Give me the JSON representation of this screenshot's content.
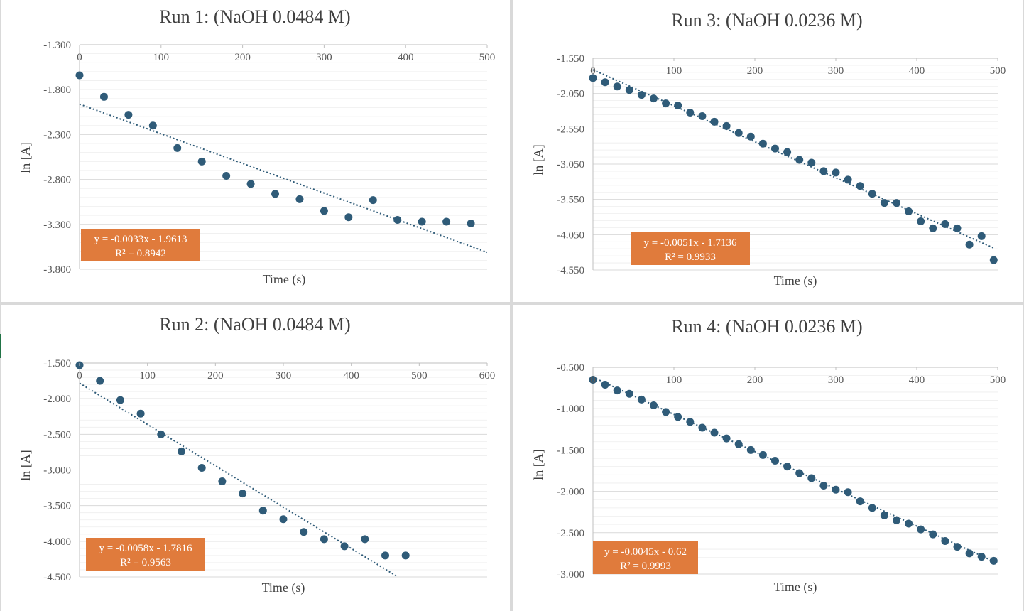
{
  "colors": {
    "point": "#2f5b78",
    "trendline": "#2f5b78",
    "equation_box": "#e07b3c",
    "gridline": "#d9d9d9"
  },
  "chart_data": [
    {
      "type": "scatter",
      "title": "Run 1: (NaOH 0.0484 M)",
      "xlabel": "Time (s)",
      "ylabel": "ln [A]",
      "xlim": [
        0,
        500
      ],
      "ylim": [
        -3.8,
        -1.3
      ],
      "x_ticks": [
        "0",
        "100",
        "200",
        "300",
        "400",
        "500"
      ],
      "y_ticks": [
        "-1.300",
        "-1.800",
        "-2.300",
        "-2.800",
        "-3.300",
        "-3.800"
      ],
      "grid": true,
      "x_axis_position": "top",
      "x": [
        0,
        30,
        60,
        90,
        120,
        150,
        180,
        210,
        240,
        270,
        300,
        330,
        360,
        390,
        420,
        450,
        480
      ],
      "y": [
        -1.64,
        -1.88,
        -2.08,
        -2.2,
        -2.45,
        -2.6,
        -2.76,
        -2.85,
        -2.96,
        -3.02,
        -3.15,
        -3.22,
        -3.03,
        -3.25,
        -3.27,
        -3.27,
        -3.29
      ],
      "trendline": {
        "slope": -0.0033,
        "intercept": -1.9613,
        "x_range": [
          0,
          500
        ]
      },
      "equation": "y = -0.0033x - 1.9613",
      "r_squared": "R² = 0.8942"
    },
    {
      "type": "scatter",
      "title": "Run 3: (NaOH 0.0236 M)",
      "xlabel": "Time (s)",
      "ylabel": "ln [A]",
      "xlim": [
        0,
        500
      ],
      "ylim": [
        -4.55,
        -1.55
      ],
      "x_ticks": [
        "0",
        "100",
        "200",
        "300",
        "400",
        "500"
      ],
      "y_ticks": [
        "-1.550",
        "-2.050",
        "-2.550",
        "-3.050",
        "-3.550",
        "-4.050",
        "-4.550"
      ],
      "grid": true,
      "x_axis_position": "top",
      "x": [
        0,
        15,
        30,
        45,
        60,
        75,
        90,
        105,
        120,
        135,
        150,
        165,
        180,
        195,
        210,
        225,
        240,
        255,
        270,
        285,
        300,
        315,
        330,
        345,
        360,
        375,
        390,
        405,
        420,
        435,
        450,
        465,
        480,
        495
      ],
      "y": [
        -1.83,
        -1.89,
        -1.95,
        -2.0,
        -2.07,
        -2.12,
        -2.19,
        -2.22,
        -2.32,
        -2.37,
        -2.45,
        -2.51,
        -2.61,
        -2.66,
        -2.76,
        -2.83,
        -2.88,
        -2.99,
        -3.03,
        -3.15,
        -3.17,
        -3.27,
        -3.36,
        -3.47,
        -3.6,
        -3.6,
        -3.72,
        -3.86,
        -3.96,
        -3.9,
        -3.96,
        -4.19,
        -4.07,
        -4.41
      ],
      "trendline": {
        "slope": -0.0051,
        "intercept": -1.7136,
        "x_range": [
          0,
          495
        ]
      },
      "equation": "y = -0.0051x - 1.7136",
      "r_squared": "R² = 0.9933"
    },
    {
      "type": "scatter",
      "title": "Run 2: (NaOH 0.0484 M)",
      "xlabel": "Time (s)",
      "ylabel": "ln [A]",
      "xlim": [
        0,
        600
      ],
      "ylim": [
        -4.5,
        -1.5
      ],
      "x_ticks": [
        "0",
        "100",
        "200",
        "300",
        "400",
        "500",
        "600"
      ],
      "y_ticks": [
        "-1.500",
        "-2.000",
        "-2.500",
        "-3.000",
        "-3.500",
        "-4.000",
        "-4.500"
      ],
      "grid": true,
      "x_axis_position": "top",
      "x": [
        0,
        30,
        60,
        90,
        120,
        150,
        180,
        210,
        240,
        270,
        300,
        330,
        360,
        390,
        420,
        450,
        480
      ],
      "y": [
        -1.53,
        -1.75,
        -2.02,
        -2.21,
        -2.5,
        -2.74,
        -2.97,
        -3.16,
        -3.33,
        -3.57,
        -3.69,
        -3.87,
        -3.97,
        -4.07,
        -3.97,
        -4.2,
        -4.2
      ],
      "trendline": {
        "slope": -0.0058,
        "intercept": -1.7816,
        "x_range": [
          0,
          470
        ]
      },
      "equation": "y = -0.0058x - 1.7816",
      "r_squared": "R² = 0.9563"
    },
    {
      "type": "scatter",
      "title": "Run 4: (NaOH 0.0236 M)",
      "xlabel": "Time (s)",
      "ylabel": "ln [A]",
      "xlim": [
        0,
        500
      ],
      "ylim": [
        -3.0,
        -0.5
      ],
      "x_ticks": [
        "0",
        "100",
        "200",
        "300",
        "400",
        "500"
      ],
      "y_ticks": [
        "-0.500",
        "-1.000",
        "-1.500",
        "-2.000",
        "-2.500",
        "-3.000"
      ],
      "grid": true,
      "x_axis_position": "top",
      "x": [
        0,
        15,
        30,
        45,
        60,
        75,
        90,
        105,
        120,
        135,
        150,
        165,
        180,
        195,
        210,
        225,
        240,
        255,
        270,
        285,
        300,
        315,
        330,
        345,
        360,
        375,
        390,
        405,
        420,
        435,
        450,
        465,
        480,
        495
      ],
      "y": [
        -0.65,
        -0.71,
        -0.78,
        -0.82,
        -0.89,
        -0.96,
        -1.04,
        -1.1,
        -1.16,
        -1.23,
        -1.29,
        -1.36,
        -1.43,
        -1.5,
        -1.56,
        -1.63,
        -1.7,
        -1.78,
        -1.84,
        -1.93,
        -1.98,
        -2.01,
        -2.12,
        -2.2,
        -2.29,
        -2.35,
        -2.39,
        -2.46,
        -2.52,
        -2.6,
        -2.67,
        -2.75,
        -2.79,
        -2.84
      ],
      "trendline": {
        "slope": -0.0045,
        "intercept": -0.62,
        "x_range": [
          0,
          495
        ]
      },
      "equation": "y = -0.0045x - 0.62",
      "r_squared": "R² = 0.9993"
    }
  ]
}
